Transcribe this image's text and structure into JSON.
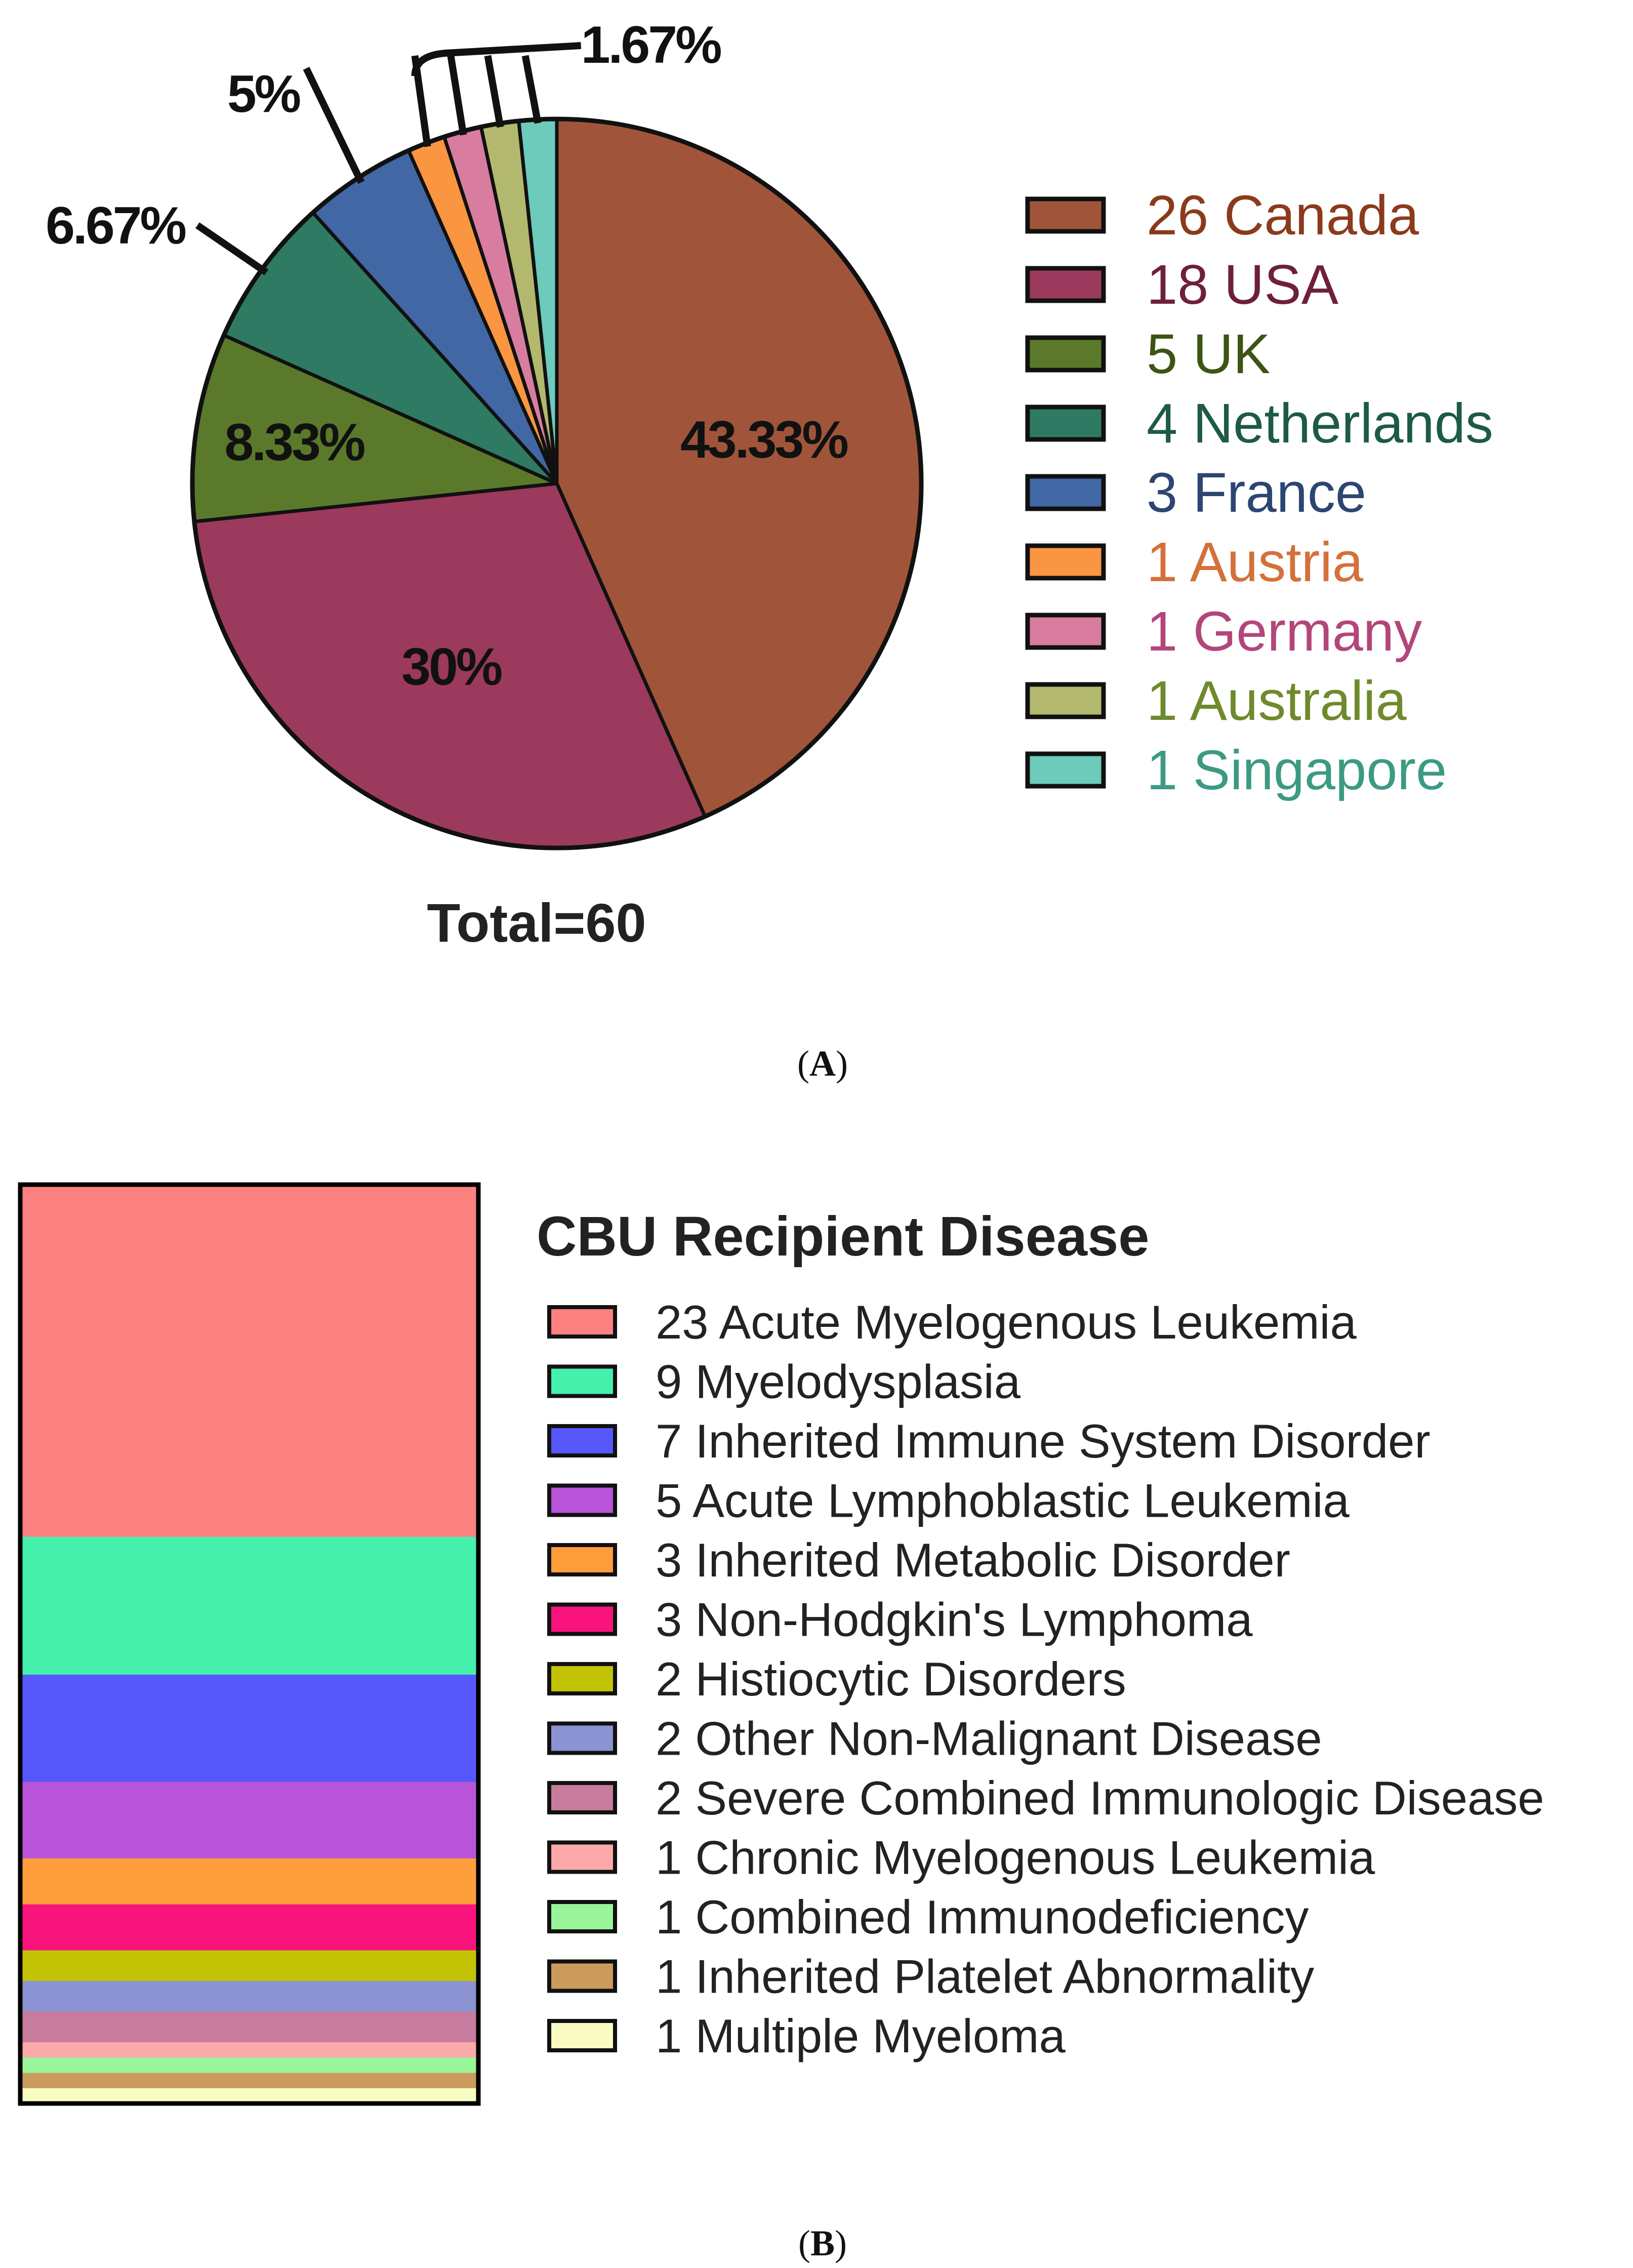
{
  "panel_a_label": {
    "open": "(",
    "letter": "A",
    "close": ")"
  },
  "panel_b_label": {
    "open": "(",
    "letter": "B",
    "close": ")"
  },
  "chart_data": [
    {
      "type": "pie",
      "panel": "A",
      "title": "",
      "total_label": "Total=60",
      "slices": [
        {
          "count": 26,
          "label": "Canada",
          "legend": "26 Canada",
          "percent": 43.33,
          "percent_label": "43.33%",
          "fill": "#a0553a",
          "text_color": "#8b3a1c"
        },
        {
          "count": 18,
          "label": "USA",
          "legend": "18 USA",
          "percent": 30,
          "percent_label": "30%",
          "fill": "#9b3a5c",
          "text_color": "#6e1f3e"
        },
        {
          "count": 5,
          "label": "UK",
          "legend": "5 UK",
          "percent": 8.33,
          "percent_label": "8.33%",
          "fill": "#5b792b",
          "text_color": "#3c5414"
        },
        {
          "count": 4,
          "label": "Netherlands",
          "legend": "4 Netherlands",
          "percent": 6.67,
          "percent_label": "6.67%",
          "fill": "#2f7a63",
          "text_color": "#1d5a47"
        },
        {
          "count": 3,
          "label": "France",
          "legend": "3 France",
          "percent": 5,
          "percent_label": "5%",
          "fill": "#4267a5",
          "text_color": "#2c4672"
        },
        {
          "count": 1,
          "label": "Austria",
          "legend": "1 Austria",
          "percent": 1.67,
          "percent_label": "",
          "fill": "#fa9541",
          "text_color": "#d4703a"
        },
        {
          "count": 1,
          "label": "Germany",
          "legend": "1 Germany",
          "percent": 1.67,
          "percent_label": "",
          "fill": "#d87da0",
          "text_color": "#b2467a"
        },
        {
          "count": 1,
          "label": "Australia",
          "legend": "1 Australia",
          "percent": 1.67,
          "percent_label": "",
          "fill": "#b2b96f",
          "text_color": "#6e8a2c"
        },
        {
          "count": 1,
          "label": "Singapore",
          "legend": "1 Singapore",
          "percent": 1.67,
          "percent_label": "",
          "fill": "#6ccbbb",
          "text_color": "#3c9a82"
        }
      ],
      "grouped_small_label": "1.67%",
      "legend_position": "right"
    },
    {
      "type": "bar",
      "subtype": "stacked",
      "panel": "B",
      "legend_title": "CBU Recipient Disease",
      "total": 60,
      "series": [
        {
          "count": 23,
          "name": "Acute Myelogenous Leukemia",
          "legend": "23 Acute Myelogenous Leukemia",
          "fill": "#fd8080"
        },
        {
          "count": 9,
          "name": "Myelodysplasia",
          "legend": "9 Myelodysplasia",
          "fill": "#45f0ad"
        },
        {
          "count": 7,
          "name": "Inherited Immune System Disorder",
          "legend": "7 Inherited Immune System Disorder",
          "fill": "#5658fb"
        },
        {
          "count": 5,
          "name": "Acute Lymphoblastic Leukemia",
          "legend": "5 Acute Lymphoblastic Leukemia",
          "fill": "#b754d8"
        },
        {
          "count": 3,
          "name": "Inherited Metabolic Disorder",
          "legend": "3 Inherited Metabolic Disorder",
          "fill": "#fe9d3c"
        },
        {
          "count": 3,
          "name": "Non-Hodgkin's Lymphoma",
          "legend": "3 Non-Hodgkin's Lymphoma",
          "fill": "#f8147c"
        },
        {
          "count": 2,
          "name": "Histiocytic Disorders",
          "legend": "2 Histiocytic Disorders",
          "fill": "#c3c306"
        },
        {
          "count": 2,
          "name": "Other Non-Malignant Disease",
          "legend": "2 Other Non-Malignant Disease",
          "fill": "#8b93d2"
        },
        {
          "count": 2,
          "name": "Severe Combined Immunologic Disease",
          "legend": "2 Severe Combined Immunologic Disease",
          "fill": "#c77b9d"
        },
        {
          "count": 1,
          "name": "Chronic Myelogenous Leukemia",
          "legend": "1 Chronic Myelogenous Leukemia",
          "fill": "#fca9a9"
        },
        {
          "count": 1,
          "name": "Combined Immunodeficiency",
          "legend": "1 Combined Immunodeficiency",
          "fill": "#98f598"
        },
        {
          "count": 1,
          "name": "Inherited Platelet Abnormality",
          "legend": "1 Inherited Platelet Abnormality",
          "fill": "#cb9b5d"
        },
        {
          "count": 1,
          "name": "Multiple Myeloma",
          "legend": "1 Multiple Myeloma",
          "fill": "#f8fcc3"
        }
      ],
      "legend_position": "right"
    }
  ]
}
